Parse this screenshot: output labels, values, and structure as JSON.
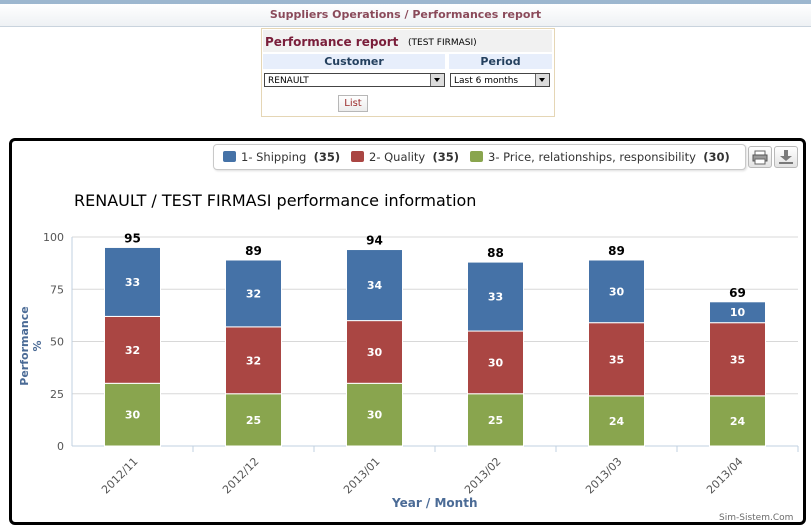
{
  "header": {
    "title": "Suppliers Operations / Performances report"
  },
  "form": {
    "report_label": "Performance report",
    "company": "(TEST FIRMASI)",
    "customer_label": "Customer",
    "customer_value": "RENAULT",
    "period_label": "Period",
    "period_value": "Last 6 months",
    "list_button": "List"
  },
  "legend": [
    {
      "label": "1- Shipping",
      "count": "(35)",
      "color": "#4572a7"
    },
    {
      "label": "2- Quality",
      "count": "(35)",
      "color": "#aa4643"
    },
    {
      "label": "3- Price, relationships, responsibility",
      "count": "(30)",
      "color": "#89a54e"
    }
  ],
  "toolbar": {
    "print_icon": "print-icon",
    "export_icon": "download-icon"
  },
  "chart_data": {
    "type": "bar",
    "stacked": true,
    "title": "RENAULT / TEST FIRMASI performance information",
    "xlabel": "Year / Month",
    "ylabel": "Performance %",
    "ylim": [
      0,
      100
    ],
    "yticks": [
      0,
      25,
      50,
      75,
      100
    ],
    "grid": true,
    "categories": [
      "2012/11",
      "2012/12",
      "2013/01",
      "2013/02",
      "2013/03",
      "2013/04"
    ],
    "series": [
      {
        "name": "3- Price, relationships, responsibility",
        "color": "#89a54e",
        "values": [
          30,
          25,
          30,
          25,
          24,
          24
        ]
      },
      {
        "name": "2- Quality",
        "color": "#aa4643",
        "values": [
          32,
          32,
          30,
          30,
          35,
          35
        ]
      },
      {
        "name": "1- Shipping",
        "color": "#4572a7",
        "values": [
          33,
          32,
          34,
          33,
          30,
          10
        ]
      }
    ],
    "totals": [
      95,
      89,
      94,
      88,
      89,
      69
    ]
  },
  "footer": {
    "credit": "Sim-Sistem.Com"
  }
}
